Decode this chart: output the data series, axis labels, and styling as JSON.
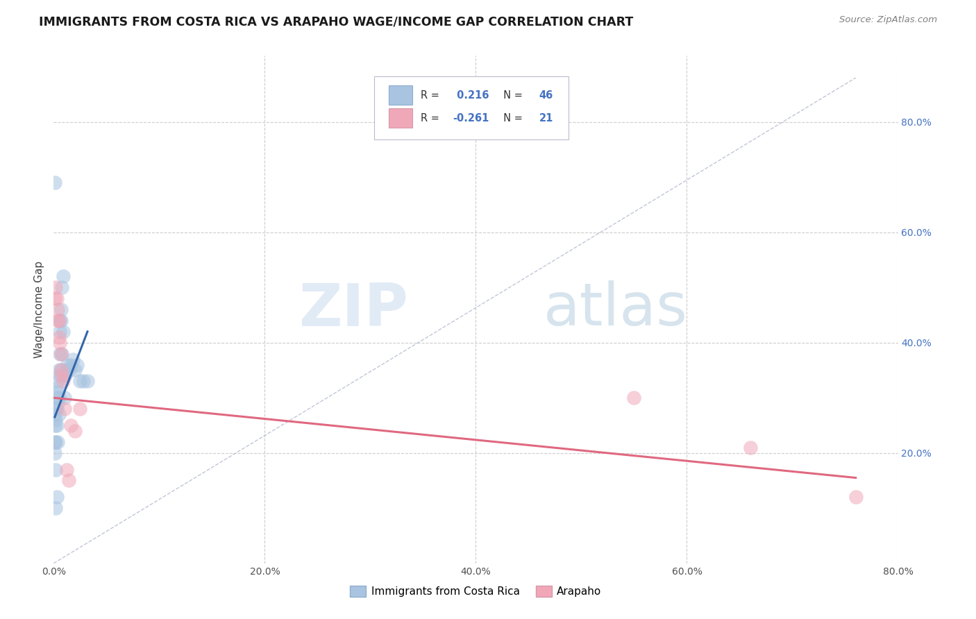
{
  "title": "IMMIGRANTS FROM COSTA RICA VS ARAPAHO WAGE/INCOME GAP CORRELATION CHART",
  "source": "Source: ZipAtlas.com",
  "ylabel": "Wage/Income Gap",
  "blue_r": 0.216,
  "blue_n": 46,
  "pink_r": -0.261,
  "pink_n": 21,
  "legend_label_blue": "Immigrants from Costa Rica",
  "legend_label_pink": "Arapaho",
  "blue_color": "#a8c4e0",
  "pink_color": "#f0a8b8",
  "blue_line_color": "#3366aa",
  "pink_line_color": "#e06880",
  "ref_line_color": "#b0b8cc",
  "watermark_zip": "ZIP",
  "watermark_atlas": "atlas",
  "xlim": [
    0.0,
    0.8
  ],
  "ylim": [
    0.0,
    0.92
  ],
  "blue_dots_x": [
    0.001,
    0.001,
    0.001,
    0.001,
    0.002,
    0.002,
    0.002,
    0.002,
    0.002,
    0.003,
    0.003,
    0.003,
    0.003,
    0.004,
    0.004,
    0.004,
    0.004,
    0.005,
    0.005,
    0.005,
    0.005,
    0.006,
    0.006,
    0.006,
    0.006,
    0.007,
    0.007,
    0.007,
    0.008,
    0.008,
    0.009,
    0.009,
    0.01,
    0.01,
    0.011,
    0.012,
    0.013,
    0.015,
    0.016,
    0.018,
    0.02,
    0.022,
    0.025,
    0.028,
    0.032,
    0.001
  ],
  "blue_dots_y": [
    0.27,
    0.25,
    0.22,
    0.2,
    0.28,
    0.26,
    0.22,
    0.17,
    0.1,
    0.3,
    0.28,
    0.25,
    0.12,
    0.33,
    0.31,
    0.29,
    0.22,
    0.35,
    0.32,
    0.3,
    0.27,
    0.44,
    0.42,
    0.38,
    0.34,
    0.46,
    0.44,
    0.35,
    0.5,
    0.38,
    0.52,
    0.42,
    0.34,
    0.3,
    0.34,
    0.35,
    0.36,
    0.35,
    0.36,
    0.37,
    0.35,
    0.36,
    0.33,
    0.33,
    0.33,
    0.69
  ],
  "pink_dots_x": [
    0.001,
    0.002,
    0.003,
    0.004,
    0.004,
    0.005,
    0.005,
    0.006,
    0.007,
    0.007,
    0.008,
    0.009,
    0.01,
    0.012,
    0.014,
    0.016,
    0.02,
    0.025,
    0.55,
    0.66,
    0.76
  ],
  "pink_dots_y": [
    0.48,
    0.5,
    0.48,
    0.46,
    0.44,
    0.44,
    0.41,
    0.4,
    0.38,
    0.35,
    0.34,
    0.33,
    0.28,
    0.17,
    0.15,
    0.25,
    0.24,
    0.28,
    0.3,
    0.21,
    0.12
  ],
  "blue_line_x": [
    0.001,
    0.032
  ],
  "blue_line_y": [
    0.265,
    0.42
  ],
  "pink_line_x": [
    0.0,
    0.76
  ],
  "pink_line_y": [
    0.3,
    0.155
  ],
  "ref_line_x": [
    0.0,
    0.76
  ],
  "ref_line_y": [
    0.0,
    0.88
  ]
}
